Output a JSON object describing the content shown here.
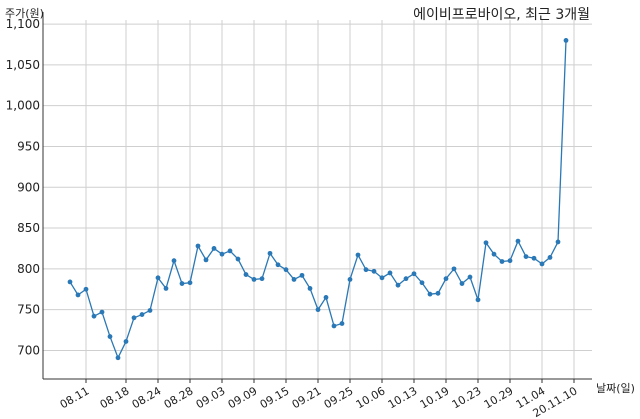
{
  "chart_data": {
    "type": "line",
    "title": "에이비프로바이오, 최근 3개월",
    "xlabel": "날짜(일)",
    "ylabel": "주가(원)",
    "ylim": [
      665,
      1105
    ],
    "yticks": [
      700,
      750,
      800,
      850,
      900,
      950,
      1000,
      1050,
      1100
    ],
    "ytick_labels": [
      "700",
      "750",
      "800",
      "850",
      "900",
      "950",
      "1,000",
      "1,050",
      "1,100"
    ],
    "xticks": [
      {
        "label": "08.11",
        "index": 2
      },
      {
        "label": "08.18",
        "index": 7
      },
      {
        "label": "08.24",
        "index": 11
      },
      {
        "label": "08.28",
        "index": 15
      },
      {
        "label": "09.03",
        "index": 19
      },
      {
        "label": "09.09",
        "index": 23
      },
      {
        "label": "09.15",
        "index": 27
      },
      {
        "label": "09.21",
        "index": 31
      },
      {
        "label": "09.25",
        "index": 35
      },
      {
        "label": "10.06",
        "index": 39
      },
      {
        "label": "10.13",
        "index": 43
      },
      {
        "label": "10.19",
        "index": 47
      },
      {
        "label": "10.23",
        "index": 51
      },
      {
        "label": "10.29",
        "index": 55
      },
      {
        "label": "11.04",
        "index": 59
      },
      {
        "label": "20.11.10",
        "index": 63
      }
    ],
    "grid": true,
    "line_color": "#2a78b5",
    "series": [
      {
        "values": [
          784,
          768,
          775,
          742,
          747,
          717,
          691,
          711,
          740,
          744,
          749,
          789,
          776,
          810,
          782,
          783,
          828,
          811,
          825,
          818,
          822,
          812,
          793,
          787,
          788,
          819,
          805,
          799,
          787,
          792,
          776,
          750,
          765,
          730,
          733,
          787,
          817,
          799,
          797,
          789,
          795,
          780,
          788,
          794,
          783,
          769,
          770,
          788,
          800,
          782,
          790,
          762,
          832,
          818,
          809,
          810,
          834,
          815,
          813,
          806,
          814,
          833,
          1080
        ]
      }
    ]
  }
}
